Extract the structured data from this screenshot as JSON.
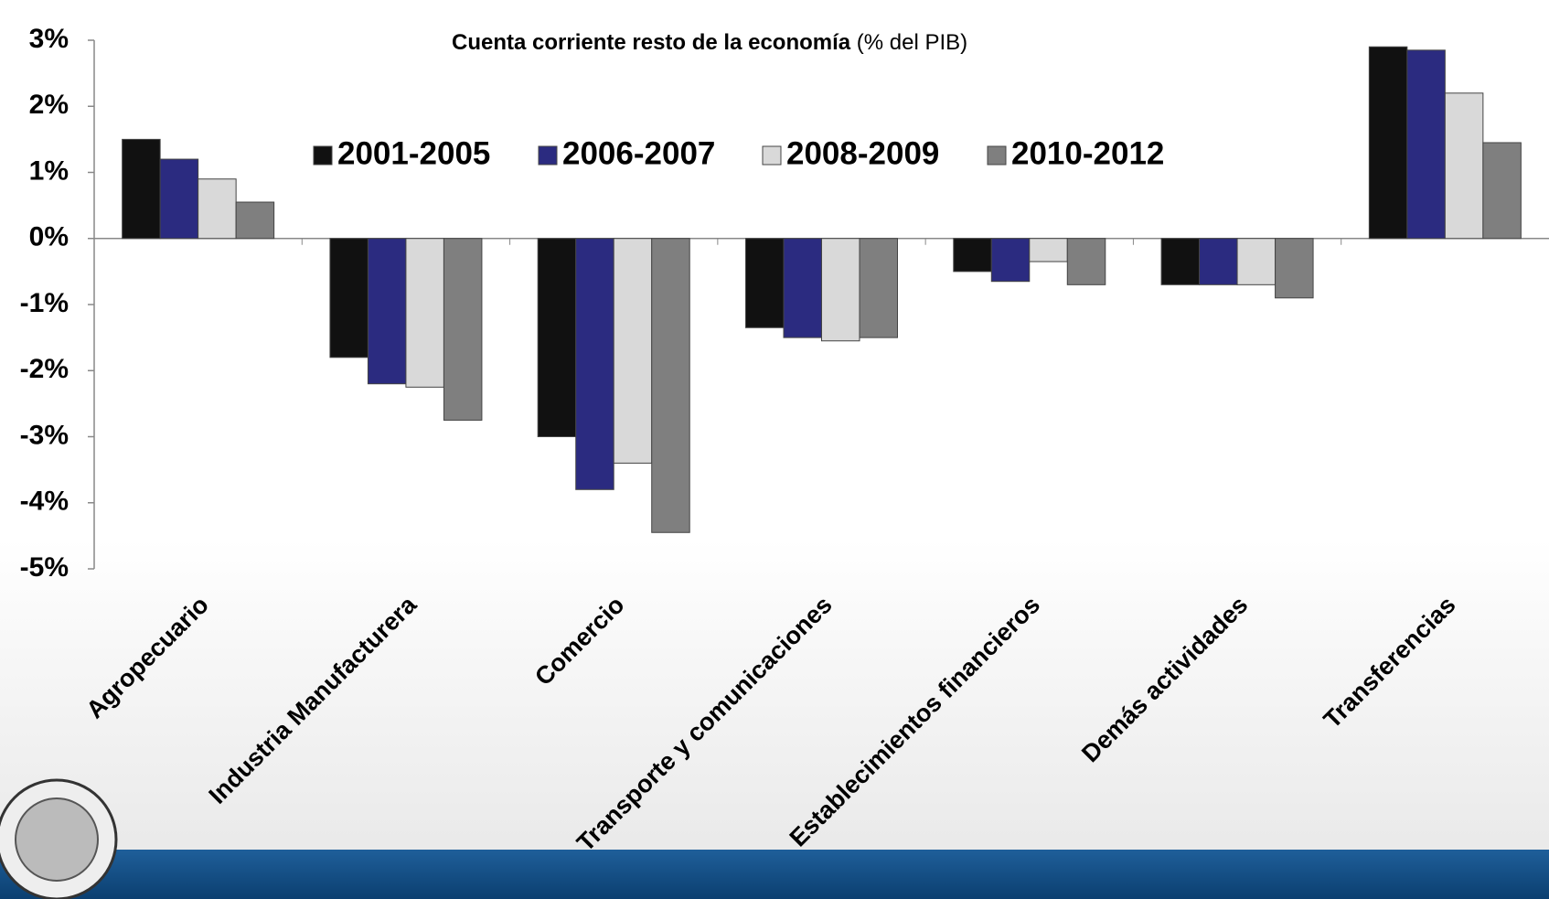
{
  "chart_data": {
    "type": "bar",
    "title": "Cuenta corriente resto de la economía",
    "subtitle": "(% del PIB)",
    "categories": [
      "Agropecuario",
      "Industria Manufacturera",
      "Comercio",
      "Transporte y comunicaciones",
      "Establecimientos financieros",
      "Demás actividades",
      "Transferencias"
    ],
    "series": [
      {
        "name": "2001-2005",
        "color": "#111111",
        "values": [
          1.5,
          -1.8,
          -3.0,
          -1.35,
          -0.5,
          -0.7,
          2.9
        ]
      },
      {
        "name": "2006-2007",
        "color": "#2b2b80",
        "values": [
          1.2,
          -2.2,
          -3.8,
          -1.5,
          -0.65,
          -0.7,
          2.85
        ]
      },
      {
        "name": "2008-2009",
        "color": "#d9d9d9",
        "values": [
          0.9,
          -2.25,
          -3.4,
          -1.55,
          -0.35,
          -0.7,
          2.2
        ]
      },
      {
        "name": "2010-2012",
        "color": "#7f7f7f",
        "values": [
          0.55,
          -2.75,
          -4.45,
          -1.5,
          -0.7,
          -0.9,
          1.45
        ]
      }
    ],
    "ylim": [
      -5,
      3
    ],
    "yticks": [
      {
        "value": 3,
        "label": "3%"
      },
      {
        "value": 2,
        "label": "2%"
      },
      {
        "value": 1,
        "label": "1%"
      },
      {
        "value": 0,
        "label": "0%"
      },
      {
        "value": -1,
        "label": "-1%"
      },
      {
        "value": -2,
        "label": "-2%"
      },
      {
        "value": -3,
        "label": "-3%"
      },
      {
        "value": -4,
        "label": "-4%"
      },
      {
        "value": -5,
        "label": "-5%"
      }
    ],
    "legend": "top"
  }
}
